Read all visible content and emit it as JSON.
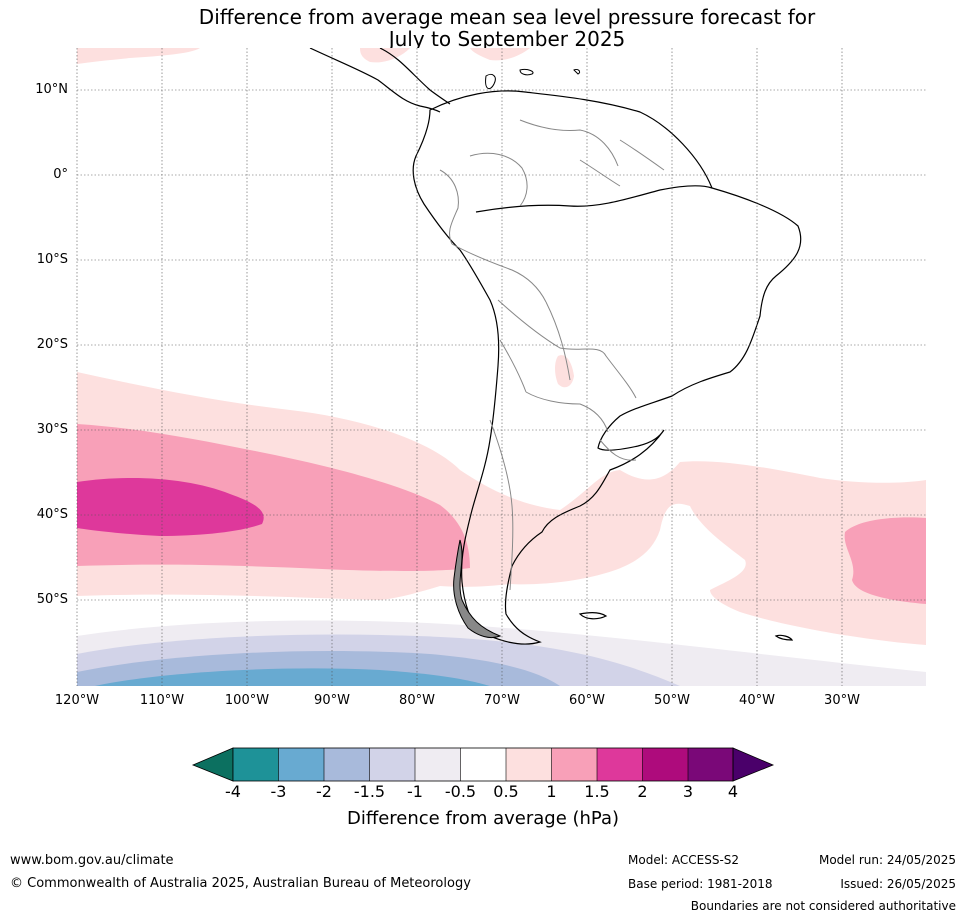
{
  "header": {
    "title_line1": "Difference from average mean sea level pressure forecast for",
    "title_line2": "July to September 2025"
  },
  "map": {
    "lat_labels": [
      "10°N",
      "0°",
      "10°S",
      "20°S",
      "30°S",
      "40°S",
      "50°S"
    ],
    "lon_labels": [
      "120°W",
      "110°W",
      "100°W",
      "90°W",
      "80°W",
      "70°W",
      "60°W",
      "50°W",
      "40°W",
      "30°W"
    ]
  },
  "colorbar": {
    "label": "Difference from average (hPa)",
    "ticks": [
      "-4",
      "-3",
      "-2",
      "-1.5",
      "-1",
      "-0.5",
      "0.5",
      "1",
      "1.5",
      "2",
      "3",
      "4"
    ],
    "colors": {
      "below_min": "#0c7060",
      "c1": "#1e9298",
      "c2": "#68aad1",
      "c3": "#a8badb",
      "c4": "#d2d3e8",
      "c5": "#efecf2",
      "neutral": "#ffffff",
      "c7": "#fde0df",
      "c8": "#f8a0b8",
      "c9": "#de389b",
      "c10": "#ae0b7c",
      "c11": "#7a0878",
      "above_max": "#4a006a"
    }
  },
  "footer": {
    "website": "www.bom.gov.au/climate",
    "copyright": "© Commonwealth of Australia 2025, Australian Bureau of Meteorology",
    "model": "Model: ACCESS-S2",
    "base_period": "Base period: 1981-2018",
    "model_run": "Model run: 24/05/2025",
    "issued": "Issued: 26/05/2025",
    "disclaimer": "Boundaries are not considered authoritative"
  }
}
